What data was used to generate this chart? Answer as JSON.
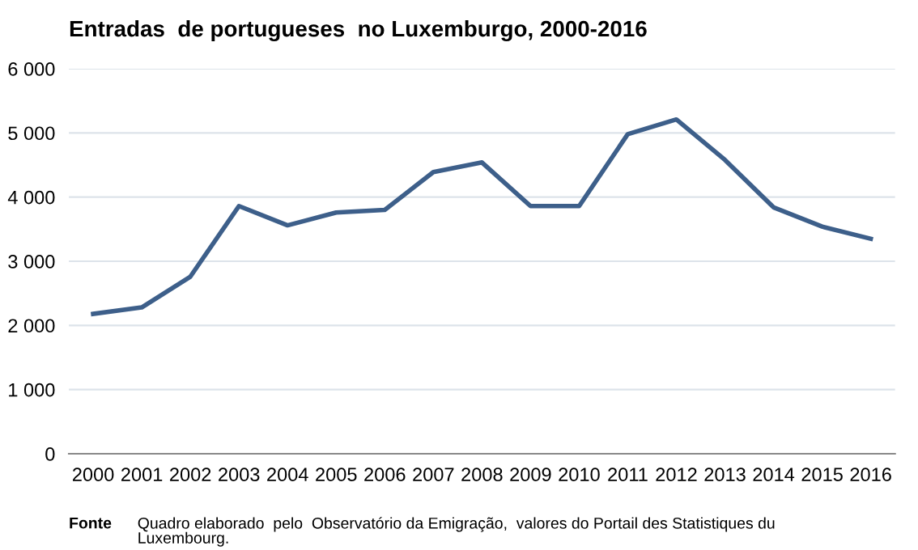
{
  "chart_data": {
    "type": "line",
    "title": "Entradas  de portugueses  no Luxemburgo, 2000-2016",
    "categories": [
      "2000",
      "2001",
      "2002",
      "2003",
      "2004",
      "2005",
      "2006",
      "2007",
      "2008",
      "2009",
      "2010",
      "2011",
      "2012",
      "2013",
      "2014",
      "2015",
      "2016"
    ],
    "series": [
      {
        "color": "#3d5f8a",
        "values": [
          2180,
          2280,
          2760,
          3860,
          3560,
          3760,
          3800,
          4390,
          4540,
          3860,
          3860,
          4980,
          5210,
          4580,
          3840,
          3540,
          3350
        ]
      }
    ],
    "ylim": [
      0,
      6000
    ],
    "yticks": [
      {
        "value": 0,
        "label": "0"
      },
      {
        "value": 1000,
        "label": "1 000"
      },
      {
        "value": 2000,
        "label": "2 000"
      },
      {
        "value": 3000,
        "label": "3 000"
      },
      {
        "value": 4000,
        "label": "4 000"
      },
      {
        "value": 5000,
        "label": "5 000"
      },
      {
        "value": 6000,
        "label": "6 000"
      }
    ],
    "grid": "y",
    "legend": false,
    "marker": "none",
    "line_style": "solid",
    "annotations": [
      "Fonte",
      "Quadro elaborado  pelo  Observatório da Emigração,  valores do Portail des Statistiques du\nLuxembourg."
    ]
  }
}
